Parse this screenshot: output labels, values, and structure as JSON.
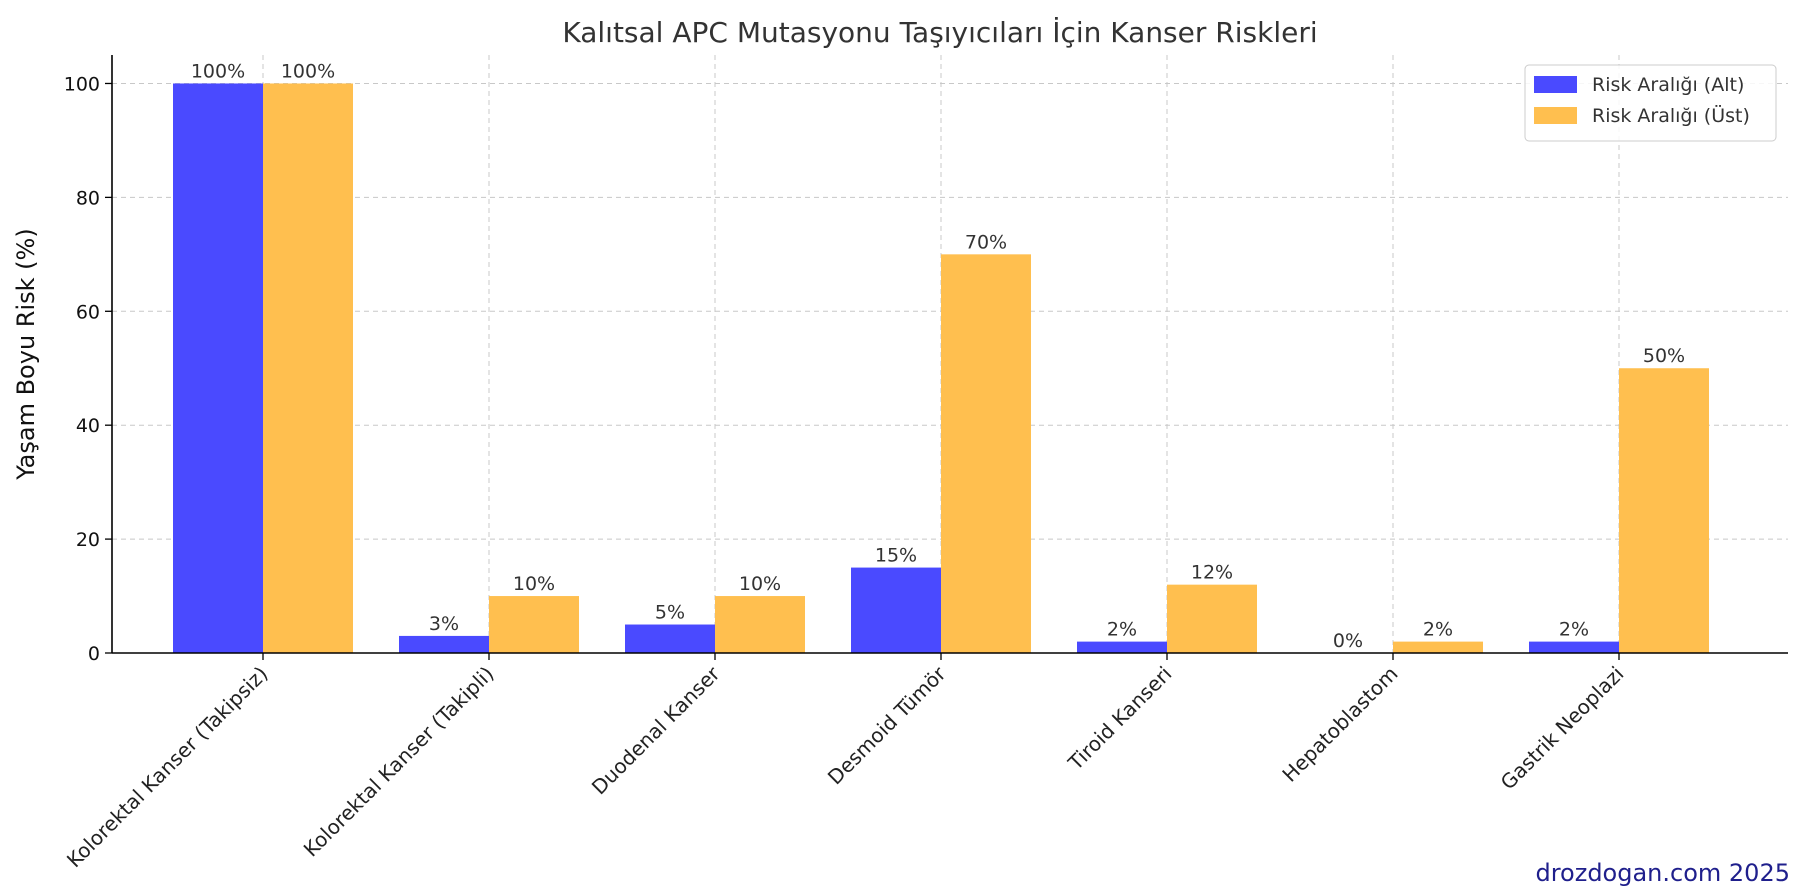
{
  "chart_data": {
    "type": "bar",
    "title": "Kalıtsal APC Mutasyonu Taşıyıcıları İçin Kanser Riskleri",
    "xlabel": "",
    "ylabel": "Yaşam Boyu Risk (%)",
    "ylim": [
      0,
      105
    ],
    "yticks": [
      0,
      20,
      40,
      60,
      80,
      100
    ],
    "categories": [
      "Kolorektal Kanser (Takipsiz)",
      "Kolorektal Kanser (Takipli)",
      "Duodenal Kanser",
      "Desmoid Tümör",
      "Tiroid Kanseri",
      "Hepatoblastom",
      "Gastrik Neoplazi"
    ],
    "series": [
      {
        "name": "Risk Aralığı (Alt)",
        "color": "#4a4aff",
        "values": [
          100,
          3,
          5,
          15,
          2,
          0,
          2
        ],
        "labels": [
          "100%",
          "3%",
          "5%",
          "15%",
          "2%",
          "0%",
          "2%"
        ]
      },
      {
        "name": "Risk Aralığı (Üst)",
        "color": "#ffbf4f",
        "values": [
          100,
          10,
          10,
          70,
          12,
          2,
          50
        ],
        "labels": [
          "100%",
          "10%",
          "10%",
          "70%",
          "12%",
          "2%",
          "50%"
        ]
      }
    ],
    "grid": true,
    "legend_position": "top-right"
  },
  "watermark": "drozdogan.com 2025"
}
